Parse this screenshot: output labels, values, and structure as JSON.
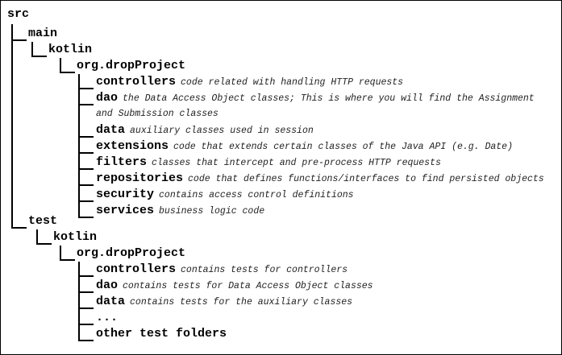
{
  "tree": {
    "root": "src",
    "main": {
      "name": "main",
      "kotlin": "kotlin",
      "package": "org.dropProject",
      "items": [
        {
          "name": "controllers",
          "desc": "code related with handling HTTP requests"
        },
        {
          "name": "dao",
          "desc": "the Data Access Object classes; This is where you will find the Assignment",
          "desc_cont": "and Submission classes"
        },
        {
          "name": "data",
          "desc": "auxiliary classes used in session"
        },
        {
          "name": "extensions",
          "desc": "code that extends certain classes of the Java API (e.g.  Date)"
        },
        {
          "name": "filters",
          "desc": "classes that intercept and pre-process HTTP requests"
        },
        {
          "name": "repositories",
          "desc": "code that defines functions/interfaces to find persisted objects"
        },
        {
          "name": "security",
          "desc": "contains access control definitions"
        },
        {
          "name": "services",
          "desc": "business logic code"
        }
      ]
    },
    "test": {
      "name": "test",
      "kotlin": "kotlin",
      "package": "org.dropProject",
      "items": [
        {
          "name": "controllers",
          "desc": "contains tests for controllers"
        },
        {
          "name": "dao",
          "desc": "contains tests for Data Access Object classes"
        },
        {
          "name": "data",
          "desc": "contains tests for the auxiliary classes"
        },
        {
          "name": "...",
          "desc": ""
        },
        {
          "name": "other test folders",
          "desc": ""
        }
      ]
    }
  }
}
